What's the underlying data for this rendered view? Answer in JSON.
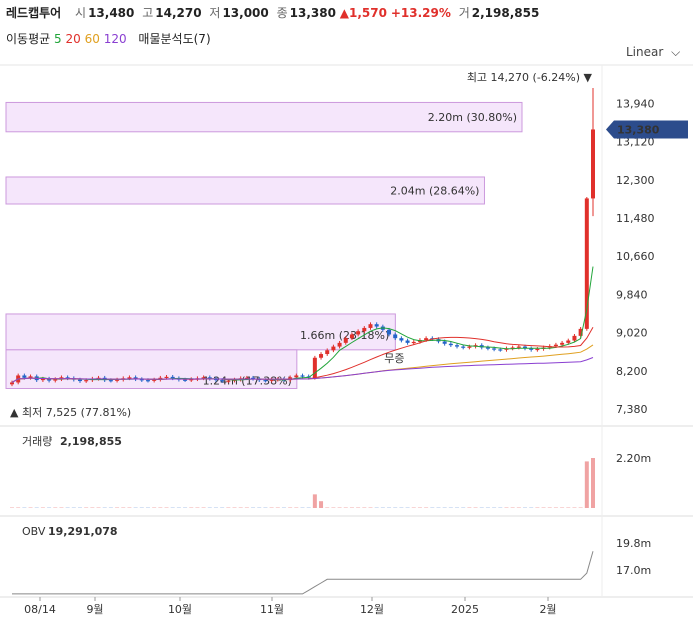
{
  "header": {
    "name": "레드캡투어",
    "open_label": "시",
    "open": "13,480",
    "high_label": "고",
    "high": "14,270",
    "low_label": "저",
    "low": "13,000",
    "close_label": "종",
    "close": "13,380",
    "change_arrow": "▲",
    "change": "1,570",
    "change_pct": "+13.29%",
    "volume_label": "거",
    "volume": "2,198,855"
  },
  "indicators": {
    "ma_label": "이동평균",
    "ma": [
      {
        "period": "5",
        "color": "#22a53a"
      },
      {
        "period": "20",
        "color": "#e0302b"
      },
      {
        "period": "60",
        "color": "#e0a020"
      },
      {
        "period": "120",
        "color": "#8a3fd1"
      }
    ],
    "vp_label": "매물분석도(7)"
  },
  "scale_button": "Linear",
  "chart_data": {
    "type": "candlestick",
    "price_axis": {
      "ticks": [
        "13,940",
        "13,120",
        "12,300",
        "11,480",
        "10,660",
        "9,840",
        "9,020",
        "8,200",
        "7,380"
      ],
      "range": [
        7380,
        14270
      ]
    },
    "last_price": "13,380",
    "high_marker": {
      "label": "최고",
      "value": "14,270",
      "pct": "(-6.24%)"
    },
    "low_marker": {
      "label": "최저",
      "value": "7,525",
      "pct": "(77.81%)"
    },
    "volume_profile": [
      {
        "label": "2.20m (30.80%)",
        "price_low": 13330,
        "price_high": 13960,
        "volume_m": 2.2
      },
      {
        "label": "2.04m (28.64%)",
        "price_low": 11780,
        "price_high": 12360,
        "volume_m": 2.04
      },
      {
        "label": "1.66m (23.18%)",
        "price_low": 8650,
        "price_high": 9420,
        "volume_m": 1.66
      },
      {
        "label": "1.24m (17.38%)",
        "price_low": 7820,
        "price_high": 8650,
        "volume_m": 1.24
      }
    ],
    "annotation": "무증",
    "x_labels": [
      "08/14",
      "9월",
      "10월",
      "11월",
      "12월",
      "2025",
      "2월"
    ],
    "close_series": [
      7950,
      8100,
      8050,
      8080,
      8000,
      8030,
      7990,
      8020,
      8060,
      8040,
      8010,
      7980,
      8000,
      8030,
      8050,
      8000,
      7990,
      8010,
      8040,
      8060,
      8020,
      8000,
      7990,
      8010,
      8050,
      8070,
      8040,
      8010,
      8000,
      8020,
      8040,
      8060,
      8030,
      8000,
      7980,
      7990,
      8010,
      8040,
      8050,
      8030,
      8000,
      7990,
      8010,
      8020,
      8000,
      8060,
      8100,
      8080,
      8050,
      8480,
      8560,
      8640,
      8720,
      8800,
      8900,
      8980,
      9050,
      9120,
      9200,
      9150,
      9080,
      8980,
      8900,
      8850,
      8800,
      8820,
      8860,
      8900,
      8880,
      8830,
      8780,
      8750,
      8720,
      8700,
      8720,
      8750,
      8700,
      8680,
      8660,
      8650,
      8680,
      8700,
      8720,
      8680,
      8650,
      8670,
      8700,
      8730,
      8760,
      8800,
      8850,
      8950,
      9100,
      11900,
      13380
    ],
    "volume_panel": {
      "title": "거래량",
      "value": "2,198,855",
      "ticks": [
        "2.20m"
      ]
    },
    "obv_panel": {
      "title": "OBV",
      "value": "19,291,078",
      "ticks": [
        "19.8m",
        "17.0m"
      ]
    }
  }
}
